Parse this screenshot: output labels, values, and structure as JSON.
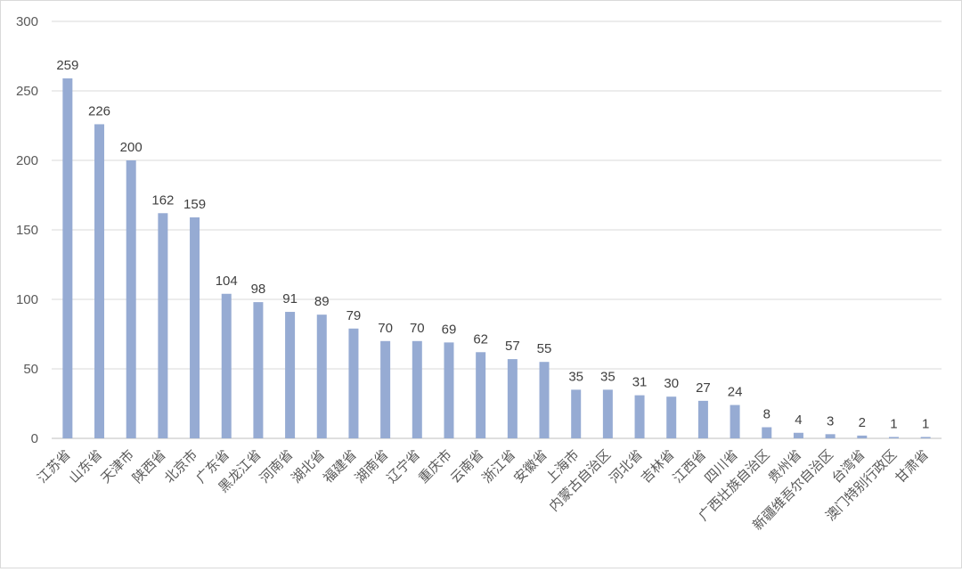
{
  "chart_data": {
    "type": "bar",
    "title": "",
    "xlabel": "",
    "ylabel": "",
    "ylim": [
      0,
      300
    ],
    "yticks": [
      0,
      50,
      100,
      150,
      200,
      250,
      300
    ],
    "grid": true,
    "legend": "none",
    "bar_color": "#96abd3",
    "categories": [
      "江苏省",
      "山东省",
      "天津市",
      "陕西省",
      "北京市",
      "广东省",
      "黑龙江省",
      "河南省",
      "湖北省",
      "福建省",
      "湖南省",
      "辽宁省",
      "重庆市",
      "云南省",
      "浙江省",
      "安徽省",
      "上海市",
      "内蒙古自治区",
      "河北省",
      "吉林省",
      "江西省",
      "四川省",
      "广西壮族自治区",
      "贵州省",
      "新疆维吾尔自治区",
      "台湾省",
      "澳门特别行政区",
      "甘肃省"
    ],
    "values": [
      259,
      226,
      200,
      162,
      159,
      104,
      98,
      91,
      89,
      79,
      70,
      70,
      69,
      62,
      57,
      55,
      35,
      35,
      31,
      30,
      27,
      24,
      8,
      4,
      3,
      2,
      1,
      1
    ]
  }
}
